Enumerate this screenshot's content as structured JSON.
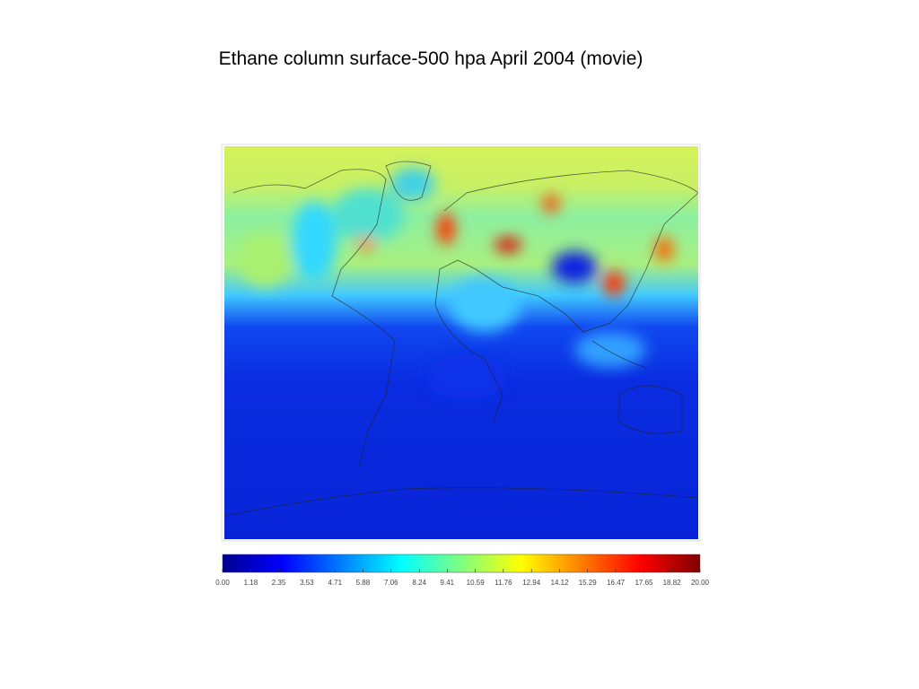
{
  "title": "Ethane column surface-500 hpa April 2004 (movie)",
  "colorbar": {
    "lim": [
      0,
      20
    ],
    "ticks": [
      {
        "value": 0,
        "label": "0.00"
      },
      {
        "value": 1.18,
        "label": "1.18"
      },
      {
        "value": 2.35,
        "label": "2.35"
      },
      {
        "value": 3.53,
        "label": "3.53"
      },
      {
        "value": 4.71,
        "label": "4.71"
      },
      {
        "value": 5.88,
        "label": "5.88"
      },
      {
        "value": 7.06,
        "label": "7.06"
      },
      {
        "value": 8.24,
        "label": "8.24"
      },
      {
        "value": 9.41,
        "label": "9.41"
      },
      {
        "value": 10.59,
        "label": "10.59"
      },
      {
        "value": 11.76,
        "label": "11.76"
      },
      {
        "value": 12.94,
        "label": "12.94"
      },
      {
        "value": 14.12,
        "label": "14.12"
      },
      {
        "value": 15.29,
        "label": "15.29"
      },
      {
        "value": 16.47,
        "label": "16.47"
      },
      {
        "value": 17.65,
        "label": "17.65"
      },
      {
        "value": 18.82,
        "label": "18.82"
      },
      {
        "value": 20,
        "label": "20.00"
      }
    ]
  }
}
